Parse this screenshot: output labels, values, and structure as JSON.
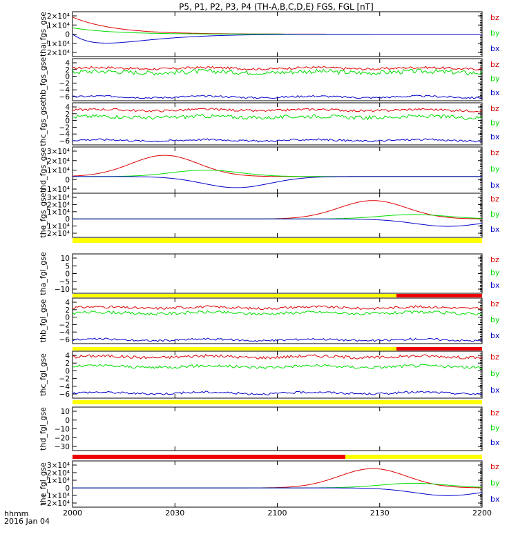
{
  "title": "P5, P1, P2, P3, P4 (TH-A,B,C,D,E) FGS, FGL [nT]",
  "footer": {
    "label_line1": "hhmm",
    "label_line2": "2016 Jan 04"
  },
  "colors": {
    "bz": "#dd0000",
    "by": "#00dd00",
    "bx": "#0000cc",
    "bar_yellow": "#ffff00",
    "bar_red": "#ee0000",
    "axes": "#000000"
  },
  "chart_data": {
    "type": "line",
    "x_ticks": [
      "2000",
      "2030",
      "2100",
      "2130",
      "2200"
    ],
    "x_range": [
      "2000",
      "2200"
    ],
    "panels": [
      {
        "ylabel": "tha_fgs_gse",
        "yticks": [
          "2×10⁴",
          "1×10⁴",
          "0",
          "−1×10⁴",
          "−2×10⁴"
        ],
        "ylim": [
          -25000,
          25000
        ],
        "legend": [
          "bz",
          "by",
          "bx"
        ],
        "series": [
          {
            "name": "bz",
            "shape": "decay",
            "from": 19000,
            "to": 0
          },
          {
            "name": "by",
            "shape": "decay",
            "from": 7000,
            "to": 0
          },
          {
            "name": "bx",
            "shape": "dip",
            "min": -10000,
            "at": 10
          }
        ]
      },
      {
        "ylabel": "thb_fgs_gse",
        "yticks": [
          "4",
          "2",
          "0",
          "−2",
          "−4",
          "−6"
        ],
        "ylim": [
          -6.5,
          4.5
        ],
        "legend": [
          "bz",
          "by",
          "bx"
        ],
        "series": [
          {
            "name": "bz",
            "level": 2.0,
            "noise": 0.3
          },
          {
            "name": "by",
            "level": 1.0,
            "noise": 0.6
          },
          {
            "name": "bx",
            "level": -5.5,
            "noise": 0.25
          }
        ]
      },
      {
        "ylabel": "thc_fgs_gse",
        "yticks": [
          "4",
          "2",
          "0",
          "−2",
          "−4",
          "−6"
        ],
        "ylim": [
          -6.5,
          4.5
        ],
        "legend": [
          "bz",
          "by",
          "bx"
        ],
        "series": [
          {
            "name": "bz",
            "level": 2.6,
            "noise": 0.3
          },
          {
            "name": "by",
            "level": 0.8,
            "noise": 0.5
          },
          {
            "name": "bx",
            "level": -5.3,
            "noise": 0.25
          }
        ]
      },
      {
        "ylabel": "thd_fgs_gse",
        "yticks": [
          "3×10⁴",
          "2×10⁴",
          "1×10⁴",
          "0",
          "−1×10⁴"
        ],
        "ylim": [
          -18000,
          32000
        ],
        "legend": [
          "bz",
          "by",
          "bx"
        ],
        "series": [
          {
            "name": "bz",
            "peak": 23000,
            "center": 27
          },
          {
            "name": "by",
            "peak": 7000,
            "center": 39
          },
          {
            "name": "bx",
            "peak": -12000,
            "center": 48
          }
        ]
      },
      {
        "ylabel": "the_fgs_gse",
        "yticks": [
          "3×10⁴",
          "2×10⁴",
          "1×10⁴",
          "0",
          "−1×10⁴",
          "−2×10⁴"
        ],
        "ylim": [
          -25000,
          35000
        ],
        "legend": [
          "bz",
          "by",
          "bx"
        ],
        "series": [
          {
            "name": "bz",
            "peak": 25000,
            "center": 88
          },
          {
            "name": "by",
            "peak": 6000,
            "center": 100
          },
          {
            "name": "bx",
            "peak": -10000,
            "center": 110
          }
        ]
      },
      {
        "ylabel": "tha_fgl_gse",
        "yticks": [
          "10",
          "5",
          "0",
          "−5",
          "−10"
        ],
        "ylim": [
          -12,
          12
        ],
        "legend": [
          "bz",
          "by",
          "bx"
        ],
        "series": []
      },
      {
        "ylabel": "thb_fgl_gse",
        "yticks": [
          "4",
          "2",
          "0",
          "−2",
          "−4",
          "−6"
        ],
        "ylim": [
          -6.5,
          4.5
        ],
        "legend": [
          "bz",
          "by",
          "bx"
        ],
        "series": [
          {
            "name": "bz",
            "level": 2.2,
            "noise": 0.3
          },
          {
            "name": "by",
            "level": 0.9,
            "noise": 0.35
          },
          {
            "name": "bx",
            "level": -5.6,
            "noise": 0.25
          }
        ]
      },
      {
        "ylabel": "thc_fgl_gse",
        "yticks": [
          "4",
          "2",
          "0",
          "−2",
          "−4",
          "−6"
        ],
        "ylim": [
          -6.5,
          4.5
        ],
        "legend": [
          "bz",
          "by",
          "bx"
        ],
        "series": [
          {
            "name": "bz",
            "level": 3.2,
            "noise": 0.35
          },
          {
            "name": "by",
            "level": 0.9,
            "noise": 0.35
          },
          {
            "name": "bx",
            "level": -5.3,
            "noise": 0.25
          }
        ]
      },
      {
        "ylabel": "thd_fgl_gse",
        "yticks": [
          "10",
          "0",
          "−10",
          "−20",
          "−30"
        ],
        "ylim": [
          -34,
          12
        ],
        "legend": [
          "bz",
          "by",
          "bx"
        ],
        "series": []
      },
      {
        "ylabel": "the_fgl_gse",
        "yticks": [
          "3×10⁴",
          "2×10⁴",
          "1×10⁴",
          "0",
          "−1×10⁴",
          "−2×10⁴"
        ],
        "ylim": [
          -25000,
          35000
        ],
        "legend": [
          "bz",
          "by",
          "bx"
        ],
        "series": [
          {
            "name": "bz",
            "peak": 25000,
            "center": 88
          },
          {
            "name": "by",
            "peak": 6000,
            "center": 100
          },
          {
            "name": "bx",
            "peak": -10000,
            "center": 110
          }
        ]
      }
    ]
  }
}
